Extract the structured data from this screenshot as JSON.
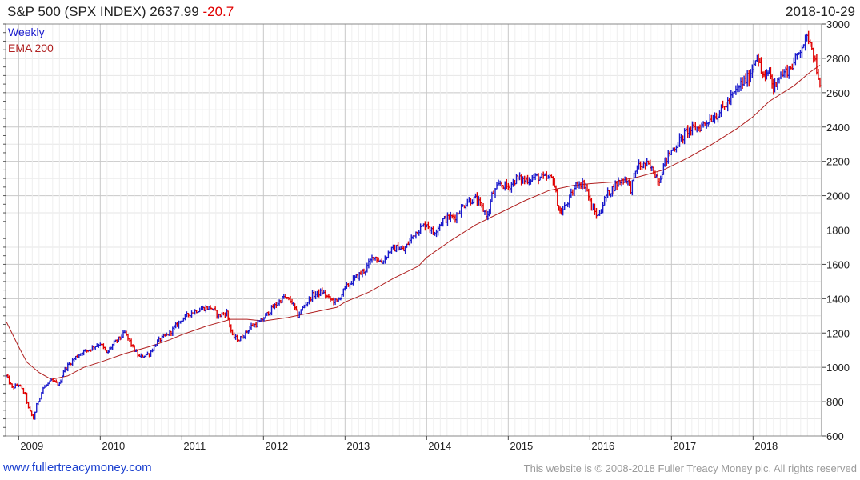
{
  "header": {
    "title": "S&P 500 (SPX INDEX) 2637.99",
    "change": "-20.7",
    "date": "2018-10-29"
  },
  "footer": {
    "site": "www.fullertreacymoney.com",
    "copyright": "This website is © 2008-2018 Fuller Treacy Money plc. All rights reserved"
  },
  "chart_data": {
    "type": "line",
    "legend": [
      {
        "label": "Weekly",
        "color": "#1a1acc"
      },
      {
        "label": "EMA 200",
        "color": "#b02020"
      }
    ],
    "legend_position": "top-left",
    "y_axis_side": "right",
    "ylim": [
      600,
      3000
    ],
    "yticks": [
      600,
      800,
      1000,
      1200,
      1400,
      1600,
      1800,
      2000,
      2200,
      2400,
      2600,
      2800,
      3000
    ],
    "xlim": [
      2008.84,
      2018.84
    ],
    "xticks": [
      "2009",
      "2010",
      "2011",
      "2012",
      "2013",
      "2014",
      "2015",
      "2016",
      "2017",
      "2018"
    ],
    "grid": true,
    "colors": {
      "up": "#1a1acc",
      "down": "#e00000",
      "ema": "#b02020"
    },
    "price_series": {
      "name": "Weekly",
      "x": [
        2008.85,
        2008.92,
        2009.0,
        2009.08,
        2009.12,
        2009.18,
        2009.22,
        2009.3,
        2009.4,
        2009.5,
        2009.55,
        2009.62,
        2009.7,
        2009.78,
        2009.85,
        2009.92,
        2010.0,
        2010.08,
        2010.15,
        2010.3,
        2010.42,
        2010.48,
        2010.6,
        2010.7,
        2010.85,
        2011.0,
        2011.12,
        2011.22,
        2011.35,
        2011.45,
        2011.55,
        2011.62,
        2011.7,
        2011.78,
        2011.85,
        2011.95,
        2012.1,
        2012.25,
        2012.35,
        2012.42,
        2012.5,
        2012.6,
        2012.72,
        2012.8,
        2012.9,
        2013.0,
        2013.1,
        2013.25,
        2013.35,
        2013.45,
        2013.55,
        2013.65,
        2013.72,
        2013.85,
        2014.0,
        2014.08,
        2014.2,
        2014.35,
        2014.5,
        2014.6,
        2014.75,
        2014.8,
        2014.9,
        2015.0,
        2015.1,
        2015.2,
        2015.35,
        2015.45,
        2015.55,
        2015.62,
        2015.65,
        2015.75,
        2015.85,
        2015.95,
        2016.02,
        2016.1,
        2016.2,
        2016.35,
        2016.45,
        2016.5,
        2016.58,
        2016.7,
        2016.8,
        2016.85,
        2016.92,
        2017.0,
        2017.1,
        2017.2,
        2017.35,
        2017.45,
        2017.55,
        2017.65,
        2017.75,
        2017.85,
        2017.95,
        2018.05,
        2018.1,
        2018.15,
        2018.2,
        2018.25,
        2018.3,
        2018.4,
        2018.5,
        2018.6,
        2018.68,
        2018.72,
        2018.76,
        2018.8,
        2018.82
      ],
      "y": [
        950,
        880,
        900,
        840,
        760,
        700,
        780,
        880,
        920,
        900,
        980,
        1020,
        1060,
        1090,
        1100,
        1120,
        1140,
        1080,
        1130,
        1200,
        1100,
        1060,
        1080,
        1150,
        1200,
        1280,
        1320,
        1340,
        1350,
        1300,
        1320,
        1180,
        1160,
        1200,
        1240,
        1260,
        1340,
        1410,
        1380,
        1300,
        1360,
        1420,
        1440,
        1400,
        1380,
        1460,
        1510,
        1570,
        1650,
        1610,
        1680,
        1700,
        1680,
        1780,
        1840,
        1780,
        1860,
        1880,
        1970,
        1980,
        1880,
        2000,
        2070,
        2050,
        2100,
        2090,
        2110,
        2100,
        2100,
        1920,
        1900,
        1980,
        2080,
        2060,
        1930,
        1880,
        2000,
        2080,
        2100,
        2040,
        2170,
        2180,
        2130,
        2090,
        2200,
        2260,
        2320,
        2380,
        2400,
        2440,
        2470,
        2520,
        2580,
        2650,
        2690,
        2830,
        2720,
        2680,
        2730,
        2620,
        2690,
        2720,
        2770,
        2880,
        2920,
        2880,
        2780,
        2700,
        2640
      ]
    },
    "ema_series": {
      "name": "EMA 200",
      "x": [
        2008.85,
        2009.0,
        2009.1,
        2009.25,
        2009.4,
        2009.6,
        2009.8,
        2010.0,
        2010.3,
        2010.6,
        2010.85,
        2011.0,
        2011.3,
        2011.6,
        2011.8,
        2012.0,
        2012.3,
        2012.6,
        2012.9,
        2013.0,
        2013.3,
        2013.6,
        2013.9,
        2014.0,
        2014.3,
        2014.6,
        2014.9,
        2015.2,
        2015.5,
        2015.8,
        2016.0,
        2016.3,
        2016.6,
        2016.9,
        2017.2,
        2017.5,
        2017.8,
        2018.0,
        2018.2,
        2018.5,
        2018.7,
        2018.82
      ],
      "y": [
        1265,
        1120,
        1030,
        970,
        930,
        950,
        1000,
        1030,
        1080,
        1120,
        1160,
        1190,
        1240,
        1280,
        1280,
        1270,
        1290,
        1320,
        1350,
        1380,
        1440,
        1520,
        1590,
        1640,
        1740,
        1830,
        1900,
        1970,
        2030,
        2060,
        2070,
        2080,
        2110,
        2150,
        2220,
        2300,
        2390,
        2460,
        2550,
        2640,
        2720,
        2760
      ]
    }
  }
}
